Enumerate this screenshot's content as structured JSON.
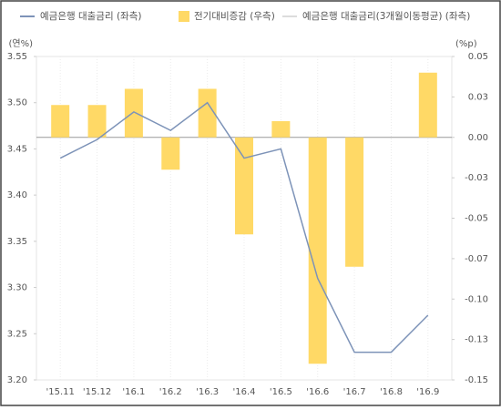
{
  "chart_data": {
    "type": "combo",
    "y_label": "(연%)",
    "y2_label": "(%p)",
    "categories": [
      "'15.11",
      "'15.12",
      "'16.1",
      "'16.2",
      "'16.3",
      "'16.4",
      "'16.5",
      "'16.6",
      "'16.7",
      "'16.8",
      "'16.9"
    ],
    "series": [
      {
        "name": "예금은행 대출금리 (좌측)",
        "type": "line",
        "axis": "y",
        "color": "#7d93b8",
        "values": [
          3.44,
          3.46,
          3.49,
          3.47,
          3.5,
          3.44,
          3.45,
          3.31,
          3.23,
          3.23,
          3.27
        ]
      },
      {
        "name": "전기대비증감 (우측)",
        "type": "bar",
        "axis": "y2",
        "color": "#ffd966",
        "values": [
          0.02,
          0.02,
          0.03,
          -0.02,
          0.03,
          -0.06,
          0.01,
          -0.14,
          -0.08,
          0,
          0.04
        ]
      },
      {
        "name": "예금은행 대출금리(3개월이동평균) (좌측)",
        "type": "line",
        "axis": "y",
        "color": "#dcdcdc",
        "values": [
          null,
          null,
          null,
          null,
          null,
          null,
          null,
          null,
          null,
          null,
          null
        ]
      }
    ],
    "ylim": [
      3.2,
      3.55
    ],
    "yticks": [
      {
        "value": 3.2,
        "label": "3.20"
      },
      3.25,
      {
        "value": 3.3,
        "label": "3.30"
      },
      3.35,
      {
        "value": 3.4,
        "label": "3.40"
      },
      3.45,
      {
        "value": 3.5,
        "label": "3.50"
      },
      3.55
    ],
    "y2lim": [
      -0.15,
      0.05
    ],
    "y2ticks": [
      -0.15,
      {
        "value": -0.125,
        "label": "-0.13"
      },
      {
        "value": -0.1,
        "label": "-0.10"
      },
      {
        "value": -0.075,
        "label": "-0.07"
      },
      -0.05,
      {
        "value": -0.025,
        "label": "-0.03"
      },
      {
        "value": 0,
        "label": "0.00"
      },
      {
        "value": 0.025,
        "label": "0.03"
      },
      0.05
    ],
    "grid": false
  }
}
